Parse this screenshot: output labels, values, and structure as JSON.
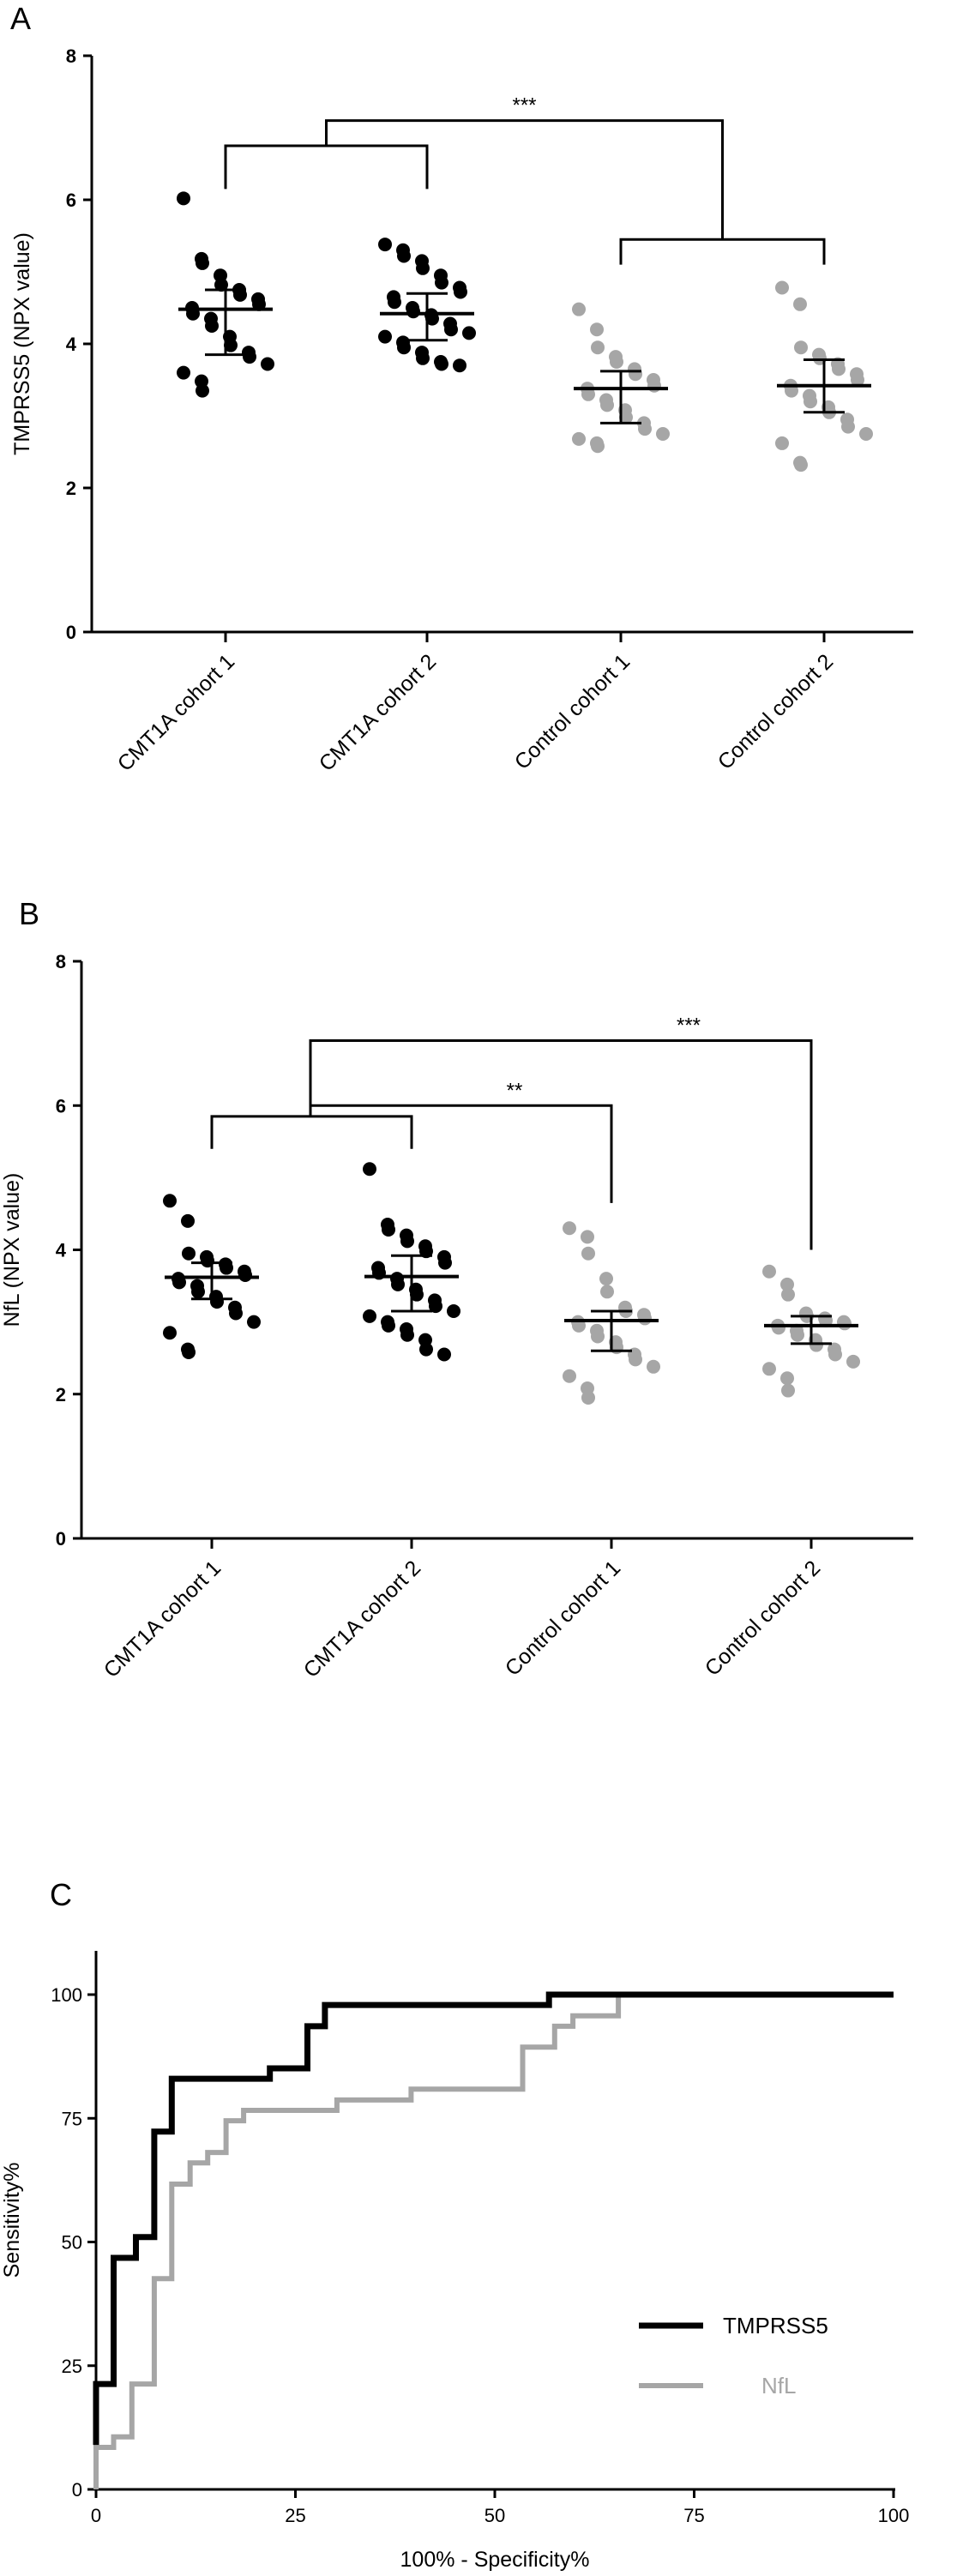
{
  "colors": {
    "cmt1a": "#000000",
    "control": "#a6a6a6",
    "tmprss5_line": "#000000",
    "nfl_line": "#a6a6a6"
  },
  "chart_data": [
    {
      "panel": "A",
      "type": "scatter",
      "ylabel": "TMPRSS5 (NPX value)",
      "ylim": [
        0,
        8
      ],
      "yticks": [
        "0",
        "2",
        "4",
        "6",
        "8"
      ],
      "categories": [
        "CMT1A cohort 1",
        "CMT1A cohort 2",
        "Control cohort 1",
        "Control cohort 2"
      ],
      "series": [
        {
          "category": "CMT1A cohort 1",
          "mean": 4.48,
          "error_low": 3.85,
          "error_high": 4.75,
          "values": [
            6.02,
            5.18,
            5.12,
            4.95,
            4.82,
            4.75,
            4.68,
            4.62,
            4.55,
            4.5,
            4.42,
            4.35,
            4.25,
            4.1,
            3.98,
            3.88,
            3.82,
            3.72,
            3.6,
            3.48,
            3.35
          ]
        },
        {
          "category": "CMT1A cohort 2",
          "mean": 4.42,
          "error_low": 4.05,
          "error_high": 4.7,
          "values": [
            5.38,
            5.3,
            5.22,
            5.15,
            5.05,
            4.95,
            4.85,
            4.78,
            4.72,
            4.65,
            4.58,
            4.5,
            4.45,
            4.4,
            4.35,
            4.28,
            4.2,
            4.15,
            4.1,
            4.02,
            3.95,
            3.88,
            3.8,
            3.75,
            3.72,
            3.7
          ]
        },
        {
          "category": "Control cohort 1",
          "mean": 3.38,
          "error_low": 2.9,
          "error_high": 3.62,
          "values": [
            4.48,
            4.2,
            3.95,
            3.82,
            3.75,
            3.65,
            3.58,
            3.5,
            3.42,
            3.38,
            3.3,
            3.22,
            3.15,
            3.08,
            2.98,
            2.9,
            2.82,
            2.75,
            2.68,
            2.62,
            2.58
          ]
        },
        {
          "category": "Control cohort 2",
          "mean": 3.42,
          "error_low": 3.05,
          "error_high": 3.78,
          "values": [
            4.78,
            4.55,
            3.95,
            3.85,
            3.8,
            3.72,
            3.65,
            3.58,
            3.5,
            3.42,
            3.35,
            3.28,
            3.2,
            3.12,
            3.05,
            2.95,
            2.85,
            2.75,
            2.62,
            2.35,
            2.32
          ]
        }
      ],
      "significance": [
        "***"
      ]
    },
    {
      "panel": "B",
      "type": "scatter",
      "ylabel": "NfL (NPX value)",
      "ylim": [
        0,
        8
      ],
      "yticks": [
        "0",
        "2",
        "4",
        "6",
        "8"
      ],
      "categories": [
        "CMT1A cohort 1",
        "CMT1A cohort 2",
        "Control cohort 1",
        "Control cohort 2"
      ],
      "series": [
        {
          "category": "CMT1A cohort 1",
          "mean": 3.62,
          "error_low": 3.32,
          "error_high": 3.82,
          "values": [
            4.68,
            4.4,
            3.95,
            3.9,
            3.85,
            3.8,
            3.75,
            3.7,
            3.65,
            3.6,
            3.55,
            3.5,
            3.42,
            3.35,
            3.28,
            3.2,
            3.12,
            3.0,
            2.85,
            2.62,
            2.58
          ]
        },
        {
          "category": "CMT1A cohort 2",
          "mean": 3.63,
          "error_low": 3.15,
          "error_high": 3.92,
          "values": [
            5.12,
            4.35,
            4.28,
            4.2,
            4.12,
            4.05,
            3.98,
            3.9,
            3.82,
            3.75,
            3.68,
            3.6,
            3.52,
            3.45,
            3.38,
            3.3,
            3.22,
            3.15,
            3.08,
            3.0,
            2.95,
            2.9,
            2.82,
            2.75,
            2.62,
            2.55
          ]
        },
        {
          "category": "Control cohort 1",
          "mean": 3.02,
          "error_low": 2.6,
          "error_high": 3.15,
          "values": [
            4.3,
            4.18,
            3.95,
            3.6,
            3.42,
            3.2,
            3.15,
            3.1,
            3.05,
            3.0,
            2.95,
            2.88,
            2.8,
            2.72,
            2.65,
            2.55,
            2.48,
            2.38,
            2.25,
            2.08,
            1.95
          ]
        },
        {
          "category": "Control cohort 2",
          "mean": 2.95,
          "error_low": 2.7,
          "error_high": 3.08,
          "values": [
            3.7,
            3.52,
            3.38,
            3.12,
            3.08,
            3.05,
            3.02,
            3.0,
            2.98,
            2.95,
            2.92,
            2.88,
            2.82,
            2.75,
            2.68,
            2.62,
            2.55,
            2.45,
            2.35,
            2.22,
            2.05
          ]
        }
      ],
      "significance": [
        "***",
        "**"
      ]
    },
    {
      "panel": "C",
      "type": "line",
      "xlabel": "100% - Specificity%",
      "ylabel": "Sensitivity%",
      "xlim": [
        0,
        100
      ],
      "ylim": [
        0,
        100
      ],
      "xticks": [
        "0",
        "25",
        "50",
        "75",
        "100"
      ],
      "yticks": [
        "0",
        "25",
        "50",
        "75",
        "100"
      ],
      "legend_position": "right",
      "series": [
        {
          "name": "TMPRSS5",
          "x": [
            0,
            0,
            2.2,
            2.2,
            5,
            5,
            7.3,
            7.3,
            9.5,
            9.5,
            16.5,
            16.5,
            21.8,
            21.8,
            26.5,
            26.5,
            28.7,
            28.7,
            56.8,
            56.8,
            65.5,
            65.5,
            100
          ],
          "y": [
            9,
            21.3,
            21.3,
            46.8,
            46.8,
            51,
            51,
            72.3,
            72.3,
            83,
            83,
            83,
            83,
            85.1,
            85.1,
            93.6,
            93.6,
            97.9,
            97.9,
            100,
            100,
            100,
            100
          ]
        },
        {
          "name": "NfL",
          "x": [
            0,
            0,
            2.2,
            2.2,
            4.5,
            4.5,
            7.3,
            7.3,
            9.5,
            9.5,
            11.8,
            11.8,
            14,
            14,
            16.3,
            16.3,
            18.5,
            18.5,
            20.8,
            20.8,
            30.2,
            30.2,
            39.5,
            39.5,
            53.5,
            53.5,
            57.5,
            57.5,
            59.8,
            59.8,
            65.5,
            65.5,
            100
          ],
          "y": [
            0,
            8.5,
            8.5,
            10.6,
            10.6,
            21.3,
            21.3,
            42.6,
            42.6,
            61.7,
            61.7,
            66,
            66,
            68.1,
            68.1,
            74.5,
            74.5,
            76.6,
            76.6,
            76.6,
            76.6,
            78.7,
            78.7,
            80.9,
            80.9,
            89.4,
            89.4,
            93.6,
            93.6,
            95.7,
            95.7,
            100,
            100
          ]
        }
      ]
    }
  ]
}
